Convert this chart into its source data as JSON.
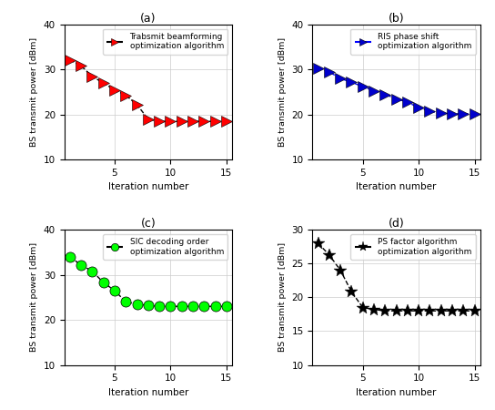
{
  "subplot_a": {
    "title": "(a)",
    "legend": "Trabsmit beamforming\noptimization algorithm",
    "x": [
      1,
      2,
      3,
      4,
      5,
      6,
      7,
      8,
      9,
      10,
      11,
      12,
      13,
      14,
      15
    ],
    "y": [
      32.2,
      30.8,
      28.5,
      27.0,
      25.5,
      24.3,
      22.2,
      19.0,
      18.5,
      18.5,
      18.5,
      18.5,
      18.5,
      18.5,
      18.5
    ],
    "line_color": "black",
    "marker_color": "red",
    "marker": "triangle_right",
    "linestyle": "--"
  },
  "subplot_b": {
    "title": "(b)",
    "legend": "RIS phase shift\noptimization algorithm",
    "x": [
      1,
      2,
      3,
      4,
      5,
      6,
      7,
      8,
      9,
      10,
      11,
      12,
      13,
      14,
      15
    ],
    "y": [
      30.3,
      29.5,
      28.0,
      27.2,
      26.2,
      25.3,
      24.5,
      23.5,
      22.8,
      21.5,
      20.8,
      20.3,
      20.2,
      20.2,
      20.2
    ],
    "line_color": "blue",
    "marker_color": "#0000cc",
    "marker": "triangle_right",
    "linestyle": "--"
  },
  "subplot_c": {
    "title": "(c)",
    "legend": "SIC decoding order\noptimization algorithm",
    "x": [
      1,
      2,
      3,
      4,
      5,
      6,
      7,
      8,
      9,
      10,
      11,
      12,
      13,
      14,
      15
    ],
    "y": [
      34.0,
      32.2,
      30.8,
      28.3,
      26.5,
      24.0,
      23.5,
      23.2,
      23.0,
      23.0,
      23.0,
      23.0,
      23.0,
      23.0,
      23.0
    ],
    "line_color": "black",
    "marker_color": "#00ff00",
    "marker": "circle",
    "linestyle": "--"
  },
  "subplot_d": {
    "title": "(d)",
    "legend": "PS factor algorithm\noptimization algorithm",
    "x": [
      1,
      2,
      3,
      4,
      5,
      6,
      7,
      8,
      9,
      10,
      11,
      12,
      13,
      14,
      15
    ],
    "y": [
      28.0,
      26.3,
      24.0,
      20.8,
      18.5,
      18.2,
      18.0,
      18.0,
      18.0,
      18.0,
      18.0,
      18.0,
      18.0,
      18.0,
      18.0
    ],
    "line_color": "black",
    "marker_color": "black",
    "marker": "star",
    "linestyle": "--"
  },
  "ylabel": "BS transmit power [dBm]",
  "xlabel": "Iteration number",
  "ylim_abc": [
    10,
    40
  ],
  "ylim_d": [
    10,
    30
  ],
  "yticks_abc": [
    10,
    20,
    30,
    40
  ],
  "yticks_d": [
    10,
    15,
    20,
    25,
    30
  ],
  "xticks": [
    5,
    10,
    15
  ],
  "xlim": [
    0.5,
    15.5
  ]
}
